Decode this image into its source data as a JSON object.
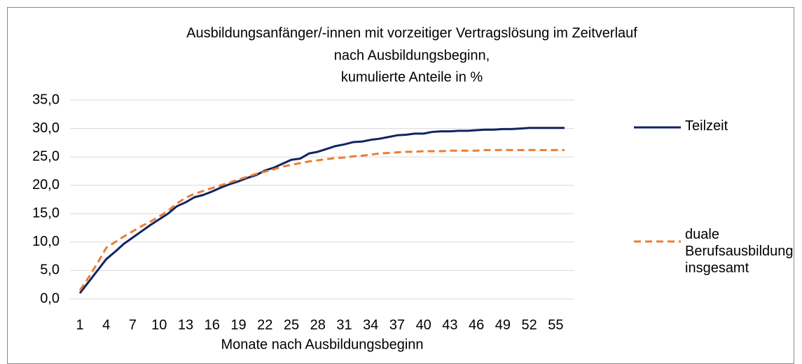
{
  "chart_data": {
    "type": "line",
    "title": [
      "Ausbildungsanfänger/-innen mit vorzeitiger Vertragslösung im Zeitverlauf",
      "nach Ausbildungsbeginn,",
      "kumulierte Anteile in %"
    ],
    "x_label": "Monate nach Ausbildungsbeginn",
    "categories": [
      "1",
      null,
      null,
      "4",
      null,
      null,
      "7",
      null,
      null,
      "10",
      null,
      null,
      "13",
      null,
      null,
      "16",
      null,
      null,
      "19",
      null,
      null,
      "22",
      null,
      null,
      "25",
      null,
      null,
      "28",
      null,
      null,
      "31",
      null,
      null,
      "34",
      null,
      null,
      "37",
      null,
      null,
      "40",
      null,
      null,
      "43",
      null,
      null,
      "46",
      null,
      null,
      "49",
      null,
      null,
      "52",
      null,
      null,
      "55",
      null
    ],
    "ylim": [
      0,
      35
    ],
    "yticks": [
      {
        "value": 0,
        "label": "0,0"
      },
      {
        "value": 5,
        "label": "5,0"
      },
      {
        "value": 10,
        "label": "10,0"
      },
      {
        "value": 15,
        "label": "15,0"
      },
      {
        "value": 20,
        "label": "20,0"
      },
      {
        "value": 25,
        "label": "25,0"
      },
      {
        "value": 30,
        "label": "30,0"
      },
      {
        "value": 35,
        "label": "35,0"
      }
    ],
    "grid": true,
    "series": [
      {
        "name": "Teilzeit",
        "color": "#0f2462",
        "dash": false,
        "values": [
          1.0,
          3.0,
          5.0,
          7.0,
          8.3,
          9.7,
          10.8,
          11.9,
          13.0,
          14.0,
          15.0,
          16.3,
          17.0,
          17.9,
          18.3,
          18.9,
          19.6,
          20.2,
          20.7,
          21.3,
          21.8,
          22.6,
          23.1,
          23.8,
          24.5,
          24.7,
          25.6,
          25.9,
          26.4,
          26.9,
          27.2,
          27.6,
          27.7,
          28.0,
          28.2,
          28.5,
          28.8,
          28.9,
          29.1,
          29.1,
          29.4,
          29.5,
          29.5,
          29.6,
          29.6,
          29.7,
          29.8,
          29.8,
          29.9,
          29.9,
          30.0,
          30.1,
          30.1,
          30.1,
          30.1,
          30.1
        ]
      },
      {
        "name": "duale Berufsausbildung insgesamt",
        "color": "#ed7d31",
        "dash": true,
        "values": [
          1.5,
          3.8,
          6.3,
          9.0,
          10.0,
          11.0,
          11.9,
          12.8,
          13.6,
          14.5,
          15.5,
          16.8,
          17.8,
          18.5,
          19.0,
          19.5,
          20.0,
          20.5,
          21.0,
          21.5,
          22.0,
          22.4,
          22.8,
          23.3,
          23.6,
          23.9,
          24.2,
          24.4,
          24.6,
          24.8,
          24.9,
          25.1,
          25.2,
          25.4,
          25.6,
          25.7,
          25.8,
          25.9,
          25.9,
          26.0,
          26.0,
          26.0,
          26.1,
          26.1,
          26.1,
          26.1,
          26.2,
          26.2,
          26.2,
          26.2,
          26.2,
          26.2,
          26.2,
          26.2,
          26.2,
          26.2
        ]
      }
    ]
  }
}
